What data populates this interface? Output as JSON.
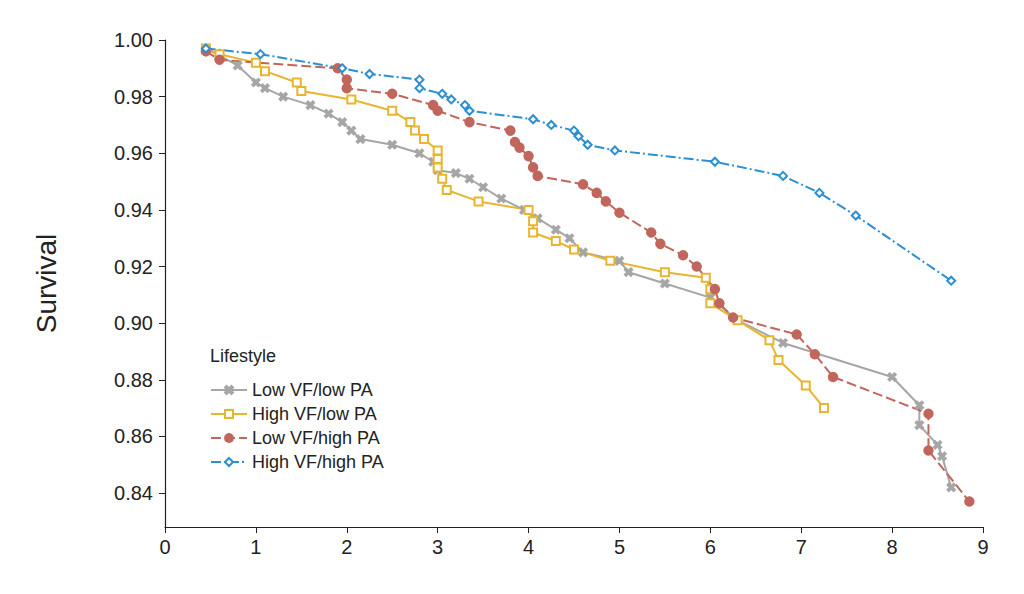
{
  "chart_data": {
    "type": "line",
    "ylabel": "Survival",
    "legend_title": "Lifestyle",
    "legend": "lower left",
    "grid": false,
    "xlim": [
      0,
      9
    ],
    "xticks": [
      0,
      1,
      2,
      3,
      4,
      5,
      6,
      7,
      8,
      9
    ],
    "ylim": [
      0.828,
      1.0
    ],
    "yticks": [
      0.84,
      0.86,
      0.88,
      {
        "value": 0.9,
        "label": "0.90"
      },
      0.92,
      0.94,
      0.96,
      0.98,
      {
        "value": 1.0,
        "label": "1.00"
      }
    ],
    "series": [
      {
        "name": "Low VF/low PA",
        "color": "#a6a6a6",
        "marker": "x",
        "line_style": "solid",
        "x": [
          0.45,
          0.8,
          1.0,
          1.1,
          1.3,
          1.6,
          1.8,
          1.95,
          2.05,
          2.15,
          2.5,
          2.8,
          2.95,
          3.0,
          3.2,
          3.35,
          3.5,
          3.7,
          3.95,
          4.1,
          4.3,
          4.45,
          4.6,
          5.0,
          5.1,
          5.5,
          6.0,
          6.3,
          6.8,
          8.0,
          8.3,
          8.3,
          8.5,
          8.55,
          8.65
        ],
        "values": [
          0.997,
          0.991,
          0.985,
          0.983,
          0.98,
          0.977,
          0.974,
          0.971,
          0.968,
          0.965,
          0.963,
          0.96,
          0.957,
          0.954,
          0.953,
          0.951,
          0.948,
          0.944,
          0.94,
          0.937,
          0.933,
          0.93,
          0.925,
          0.922,
          0.918,
          0.914,
          0.909,
          0.901,
          0.893,
          0.881,
          0.871,
          0.864,
          0.857,
          0.853,
          0.842
        ]
      },
      {
        "name": "High VF/low PA",
        "color": "#e8b530",
        "marker": "square",
        "line_style": "solid",
        "x": [
          0.45,
          0.6,
          1.0,
          1.1,
          1.45,
          1.5,
          2.05,
          2.5,
          2.7,
          2.75,
          2.85,
          3.0,
          3.0,
          3.0,
          3.05,
          3.1,
          3.45,
          4.0,
          4.05,
          4.05,
          4.3,
          4.5,
          4.9,
          5.5,
          5.95,
          6.0,
          6.0,
          6.3,
          6.65,
          6.75,
          7.05,
          7.25
        ],
        "values": [
          0.997,
          0.995,
          0.992,
          0.989,
          0.985,
          0.982,
          0.979,
          0.975,
          0.971,
          0.968,
          0.965,
          0.961,
          0.958,
          0.955,
          0.951,
          0.947,
          0.943,
          0.94,
          0.936,
          0.932,
          0.929,
          0.926,
          0.922,
          0.918,
          0.916,
          0.912,
          0.907,
          0.901,
          0.894,
          0.887,
          0.878,
          0.87
        ]
      },
      {
        "name": "Low VF/high PA",
        "color": "#c0665c",
        "marker": "circle",
        "line_style": "dashed",
        "x": [
          0.45,
          0.6,
          1.9,
          2.0,
          2.0,
          2.5,
          2.95,
          3.0,
          3.35,
          3.8,
          3.85,
          3.9,
          4.0,
          4.05,
          4.1,
          4.6,
          4.75,
          4.85,
          5.0,
          5.35,
          5.45,
          5.7,
          5.85,
          6.05,
          6.1,
          6.25,
          6.95,
          7.15,
          7.35,
          8.4,
          8.4,
          8.85
        ],
        "values": [
          0.996,
          0.993,
          0.99,
          0.986,
          0.983,
          0.981,
          0.977,
          0.975,
          0.971,
          0.968,
          0.964,
          0.962,
          0.959,
          0.955,
          0.952,
          0.949,
          0.946,
          0.943,
          0.939,
          0.932,
          0.928,
          0.924,
          0.92,
          0.912,
          0.907,
          0.902,
          0.896,
          0.889,
          0.881,
          0.868,
          0.855,
          0.837
        ]
      },
      {
        "name": "High VF/high PA",
        "color": "#2b8fd0",
        "marker": "diamond",
        "line_style": "dashdot",
        "x": [
          0.45,
          1.05,
          1.95,
          2.25,
          2.8,
          2.8,
          3.05,
          3.15,
          3.3,
          3.35,
          4.05,
          4.25,
          4.5,
          4.55,
          4.65,
          4.95,
          6.05,
          6.8,
          7.2,
          7.6,
          8.65
        ],
        "values": [
          0.997,
          0.995,
          0.99,
          0.988,
          0.986,
          0.983,
          0.981,
          0.979,
          0.977,
          0.975,
          0.972,
          0.97,
          0.968,
          0.966,
          0.963,
          0.961,
          0.957,
          0.952,
          0.946,
          0.938,
          0.915
        ]
      }
    ]
  }
}
